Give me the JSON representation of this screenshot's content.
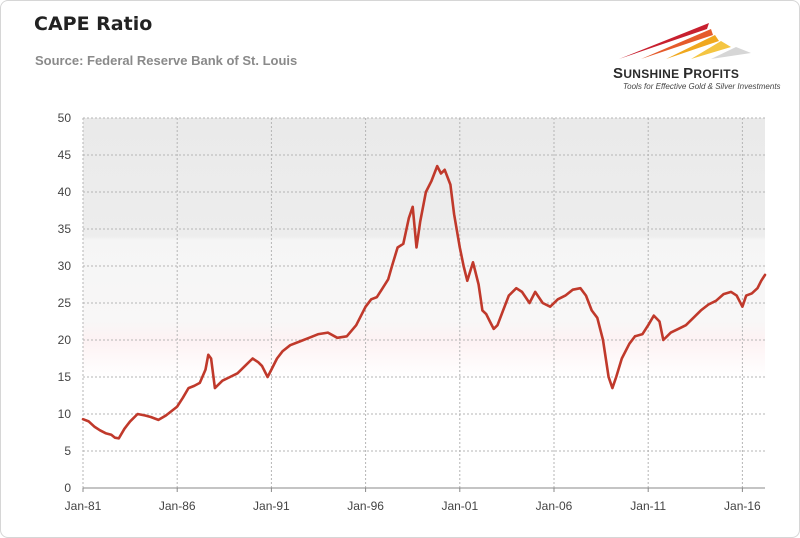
{
  "title": "CAPE Ratio",
  "subtitle": "Source: Federal Reserve Bank of St. Louis",
  "logo": {
    "name_big1": "S",
    "name_small1": "UNSHINE ",
    "name_big2": "P",
    "name_small2": "ROFITS",
    "tagline": "Tools for Effective Gold & Silver Investments",
    "colors": [
      "#c8202f",
      "#f0a81e",
      "#d6d6d6"
    ]
  },
  "chart_data": {
    "type": "line",
    "title": "CAPE Ratio",
    "xlabel": "",
    "ylabel": "",
    "xlim": [
      1981.0,
      2017.2
    ],
    "ylim": [
      0,
      50
    ],
    "y_ticks": [
      0,
      5,
      10,
      15,
      20,
      25,
      30,
      35,
      40,
      45,
      50
    ],
    "x_ticks": [
      {
        "label": "Jan-81",
        "value": 1981.0
      },
      {
        "label": "Jan-86",
        "value": 1986.0
      },
      {
        "label": "Jan-91",
        "value": 1991.0
      },
      {
        "label": "Jan-96",
        "value": 1996.0
      },
      {
        "label": "Jan-01",
        "value": 2001.0
      },
      {
        "label": "Jan-06",
        "value": 2006.0
      },
      {
        "label": "Jan-11",
        "value": 2011.0
      },
      {
        "label": "Jan-16",
        "value": 2016.0
      }
    ],
    "grid": true,
    "line_color": "#c0392b",
    "series": [
      {
        "name": "CAPE Ratio",
        "x": [
          1981.0,
          1981.3,
          1981.6,
          1981.9,
          1982.2,
          1982.5,
          1982.7,
          1982.9,
          1983.2,
          1983.5,
          1983.9,
          1984.3,
          1984.6,
          1985.0,
          1985.4,
          1985.8,
          1986.0,
          1986.3,
          1986.6,
          1986.9,
          1987.2,
          1987.5,
          1987.65,
          1987.8,
          1988.0,
          1988.4,
          1988.8,
          1989.2,
          1989.6,
          1990.0,
          1990.3,
          1990.5,
          1990.8,
          1991.0,
          1991.3,
          1991.6,
          1992.0,
          1992.5,
          1993.0,
          1993.5,
          1994.0,
          1994.5,
          1995.0,
          1995.5,
          1996.0,
          1996.3,
          1996.6,
          1996.9,
          1997.2,
          1997.4,
          1997.7,
          1998.0,
          1998.3,
          1998.5,
          1998.7,
          1998.9,
          1999.2,
          1999.5,
          1999.8,
          2000.0,
          2000.2,
          2000.5,
          2000.7,
          2001.0,
          2001.2,
          2001.4,
          2001.7,
          2002.0,
          2002.2,
          2002.4,
          2002.6,
          2002.8,
          2003.0,
          2003.3,
          2003.6,
          2004.0,
          2004.3,
          2004.7,
          2005.0,
          2005.4,
          2005.8,
          2006.2,
          2006.6,
          2007.0,
          2007.4,
          2007.7,
          2008.0,
          2008.3,
          2008.6,
          2008.9,
          2009.1,
          2009.3,
          2009.6,
          2010.0,
          2010.3,
          2010.7,
          2011.0,
          2011.3,
          2011.6,
          2011.8,
          2012.2,
          2012.6,
          2013.0,
          2013.4,
          2013.8,
          2014.2,
          2014.6,
          2015.0,
          2015.4,
          2015.7,
          2016.0,
          2016.2,
          2016.5,
          2016.8,
          2017.0,
          2017.2
        ],
        "values": [
          9.3,
          9.0,
          8.3,
          7.8,
          7.4,
          7.2,
          6.8,
          6.7,
          8.0,
          9.0,
          10.0,
          9.8,
          9.6,
          9.2,
          9.8,
          10.6,
          11.0,
          12.2,
          13.5,
          13.8,
          14.2,
          16.0,
          18.0,
          17.5,
          13.5,
          14.5,
          15.0,
          15.5,
          16.5,
          17.5,
          17.0,
          16.5,
          15.0,
          16.0,
          17.5,
          18.5,
          19.3,
          19.8,
          20.3,
          20.8,
          21.0,
          20.3,
          20.5,
          22.0,
          24.5,
          25.5,
          25.8,
          27.0,
          28.2,
          30.0,
          32.5,
          33.0,
          36.5,
          38.0,
          32.5,
          36.0,
          40.0,
          41.5,
          43.5,
          42.5,
          43.0,
          41.0,
          37.0,
          32.5,
          30.0,
          28.0,
          30.5,
          27.5,
          24.0,
          23.5,
          22.5,
          21.5,
          22.0,
          24.0,
          26.0,
          27.0,
          26.5,
          25.0,
          26.5,
          25.0,
          24.5,
          25.5,
          26.0,
          26.8,
          27.0,
          26.0,
          24.0,
          23.0,
          20.0,
          15.0,
          13.5,
          15.0,
          17.5,
          19.5,
          20.5,
          20.8,
          22.0,
          23.3,
          22.5,
          20.0,
          21.0,
          21.5,
          22.0,
          23.0,
          24.0,
          24.8,
          25.3,
          26.2,
          26.5,
          26.0,
          24.5,
          26.0,
          26.3,
          27.0,
          28.0,
          28.8
        ]
      }
    ]
  }
}
